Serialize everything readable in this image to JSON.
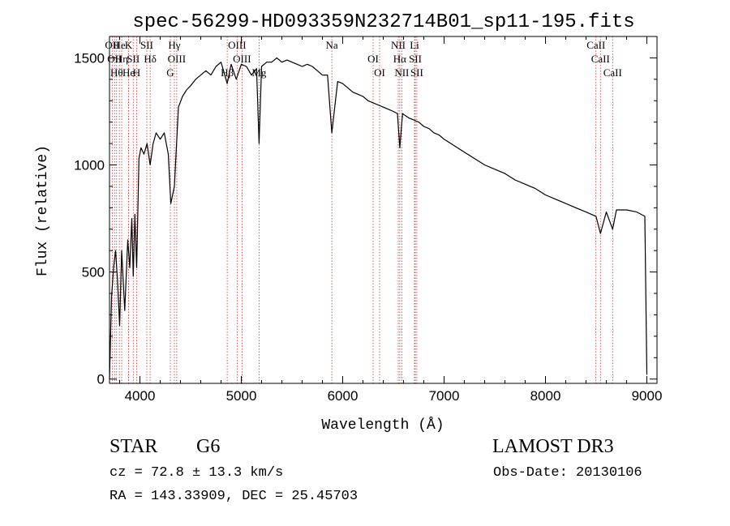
{
  "chart_data": {
    "type": "line",
    "title": "spec-56299-HD093359N232714B01_sp11-195.fits",
    "xlabel": "Wavelength (Å)",
    "ylabel": "Flux (relative)",
    "xlim": [
      3700,
      9100
    ],
    "ylim": [
      -20,
      1600
    ],
    "xticks": [
      4000,
      5000,
      6000,
      7000,
      8000,
      9000
    ],
    "yticks": [
      0,
      500,
      1000,
      1500
    ],
    "series": [
      {
        "name": "spectrum",
        "x": [
          3700,
          3720,
          3740,
          3760,
          3780,
          3800,
          3820,
          3850,
          3880,
          3900,
          3920,
          3934,
          3950,
          3968,
          3990,
          4010,
          4040,
          4070,
          4101,
          4130,
          4160,
          4200,
          4240,
          4280,
          4305,
          4340,
          4380,
          4420,
          4460,
          4500,
          4550,
          4600,
          4650,
          4700,
          4750,
          4800,
          4861,
          4900,
          4950,
          5000,
          5050,
          5100,
          5150,
          5175,
          5200,
          5250,
          5300,
          5350,
          5400,
          5450,
          5500,
          5550,
          5600,
          5650,
          5700,
          5750,
          5800,
          5850,
          5893,
          5950,
          6000,
          6050,
          6100,
          6150,
          6200,
          6250,
          6300,
          6350,
          6400,
          6450,
          6500,
          6540,
          6563,
          6590,
          6620,
          6650,
          6700,
          6750,
          6800,
          6850,
          6900,
          6950,
          7000,
          7100,
          7200,
          7300,
          7400,
          7500,
          7600,
          7700,
          7800,
          7900,
          8000,
          8100,
          8200,
          8300,
          8400,
          8498,
          8542,
          8600,
          8662,
          8700,
          8800,
          8900,
          8980,
          9000
        ],
        "y": [
          0,
          380,
          520,
          600,
          450,
          250,
          600,
          320,
          650,
          520,
          750,
          480,
          770,
          520,
          1030,
          1080,
          1050,
          1100,
          1000,
          1100,
          1150,
          1120,
          1150,
          1050,
          820,
          900,
          1270,
          1320,
          1350,
          1370,
          1400,
          1420,
          1440,
          1420,
          1460,
          1480,
          1380,
          1470,
          1400,
          1470,
          1460,
          1420,
          1450,
          1100,
          1460,
          1480,
          1480,
          1500,
          1480,
          1490,
          1480,
          1470,
          1460,
          1470,
          1460,
          1440,
          1420,
          1420,
          1150,
          1390,
          1380,
          1360,
          1340,
          1330,
          1320,
          1300,
          1290,
          1280,
          1270,
          1260,
          1250,
          1240,
          1080,
          1240,
          1230,
          1220,
          1210,
          1200,
          1180,
          1170,
          1150,
          1140,
          1120,
          1090,
          1060,
          1030,
          1000,
          980,
          960,
          930,
          910,
          890,
          860,
          840,
          820,
          800,
          780,
          760,
          680,
          780,
          700,
          790,
          790,
          780,
          760,
          20
        ]
      }
    ],
    "lines": [
      {
        "x": 3727,
        "label": "OII"
      },
      {
        "x": 3750,
        "label": "OII"
      },
      {
        "x": 3770,
        "label": "Hθ"
      },
      {
        "x": 3797,
        "label": "He"
      },
      {
        "x": 3820,
        "label": "Hη"
      },
      {
        "x": 3889,
        "label": "He"
      },
      {
        "x": 3889,
        "label": "K"
      },
      {
        "x": 3934,
        "label": "SII"
      },
      {
        "x": 3968,
        "label": "H"
      },
      {
        "x": 4068,
        "label": "SII"
      },
      {
        "x": 4101,
        "label": "Hδ"
      },
      {
        "x": 4300,
        "label": "G"
      },
      {
        "x": 4340,
        "label": "Hγ"
      },
      {
        "x": 4363,
        "label": "OIII"
      },
      {
        "x": 4861,
        "label": "Hβ"
      },
      {
        "x": 4959,
        "label": "OIII"
      },
      {
        "x": 5007,
        "label": "OIII"
      },
      {
        "x": 5175,
        "label": "Mg"
      },
      {
        "x": 5893,
        "label": "Na"
      },
      {
        "x": 6300,
        "label": "OI"
      },
      {
        "x": 6364,
        "label": "OI"
      },
      {
        "x": 6548,
        "label": "NII"
      },
      {
        "x": 6563,
        "label": "Hα"
      },
      {
        "x": 6583,
        "label": "NII"
      },
      {
        "x": 6708,
        "label": "Li"
      },
      {
        "x": 6716,
        "label": "SII"
      },
      {
        "x": 6731,
        "label": "SII"
      },
      {
        "x": 8498,
        "label": "CaII"
      },
      {
        "x": 8542,
        "label": "CaII"
      },
      {
        "x": 8662,
        "label": "CaII"
      }
    ]
  },
  "info": {
    "object_class": "STAR",
    "subclass": "G6",
    "survey": "LAMOST DR3",
    "redshift": "cz = 72.8 ± 13.3 km/s",
    "obs_date": "Obs-Date: 20130106",
    "coords": "RA = 143.33909, DEC =  25.45703"
  }
}
